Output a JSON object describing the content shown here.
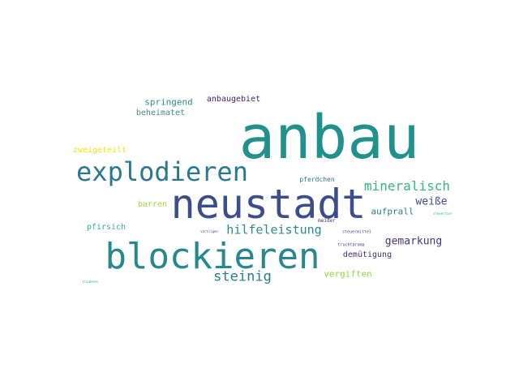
{
  "wordcloud": {
    "words": [
      {
        "text": "anbau",
        "color": "#21918c"
      },
      {
        "text": "neustadt",
        "color": "#3b4d8a"
      },
      {
        "text": "blockieren",
        "color": "#26888e"
      },
      {
        "text": "explodieren",
        "color": "#2a788e"
      },
      {
        "text": "mineralisch",
        "color": "#35b779"
      },
      {
        "text": "hilfeleistung",
        "color": "#2c8a8c"
      },
      {
        "text": "steinig",
        "color": "#2b7c8e"
      },
      {
        "text": "springend",
        "color": "#2e8f8b"
      },
      {
        "text": "anbaugebiet",
        "color": "#482173"
      },
      {
        "text": "beheimatet",
        "color": "#3a8a8c"
      },
      {
        "text": "zweigeteilt",
        "color": "#e8e419"
      },
      {
        "text": "barren",
        "color": "#a5d93f"
      },
      {
        "text": "pfirsich",
        "color": "#3bb07a"
      },
      {
        "text": "weiße",
        "color": "#3e4a89"
      },
      {
        "text": "aufprall",
        "color": "#2f7a8e"
      },
      {
        "text": "gemarkung",
        "color": "#46337e"
      },
      {
        "text": "demütigung",
        "color": "#482878"
      },
      {
        "text": "vergiften",
        "color": "#90d743"
      },
      {
        "text": "pferdchen",
        "color": "#3d6f8e"
      },
      {
        "text": "meider",
        "color": "#472d7b"
      },
      {
        "text": "steuermittel",
        "color": "#3b528b"
      },
      {
        "text": "truchtaroma",
        "color": "#44307e"
      },
      {
        "text": "steuertier",
        "color": "#2fb47c"
      },
      {
        "text": "vertilgen",
        "color": "#3e4c8a"
      },
      {
        "text": "traubenm",
        "color": "#35b779"
      }
    ]
  }
}
